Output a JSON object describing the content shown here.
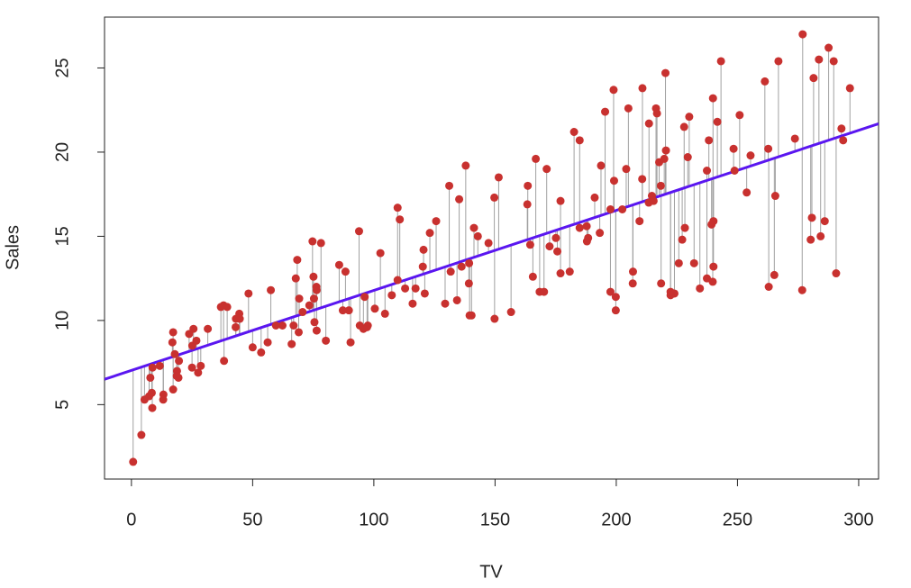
{
  "chart_data": {
    "type": "scatter",
    "x_label": "TV",
    "y_label": "Sales",
    "x": [
      230.1,
      44.5,
      17.2,
      151.5,
      180.8,
      8.7,
      57.5,
      120.2,
      8.6,
      199.8,
      66.1,
      214.7,
      23.8,
      97.5,
      204.1,
      195.4,
      67.8,
      281.4,
      69.2,
      147.3,
      218.4,
      237.4,
      13.2,
      228.3,
      62.3,
      262.9,
      142.9,
      240.1,
      248.8,
      70.6,
      292.9,
      112.9,
      97.2,
      265.6,
      95.7,
      290.7,
      266.9,
      74.7,
      43.1,
      228,
      202.5,
      177,
      293.6,
      206.9,
      25.1,
      175.1,
      89.7,
      239.9,
      227.2,
      66.9,
      199.8,
      100.4,
      216.4,
      182.6,
      262.7,
      198.9,
      7.3,
      136.2,
      210.8,
      210.7,
      53.5,
      261.3,
      239.3,
      102.7,
      131.1,
      69,
      31.5,
      139.3,
      237.4,
      216.8,
      199.1,
      109.8,
      26.8,
      129.4,
      213.4,
      16.9,
      27.5,
      120.5,
      5.4,
      116,
      76.4,
      239.8,
      75.3,
      68.4,
      213.5,
      193.2,
      76.3,
      110.7,
      88.3,
      109.8,
      134.3,
      28.6,
      217.7,
      250.9,
      107.4,
      163.3,
      197.6,
      184.9,
      289.7,
      135.2,
      222.4,
      296.4,
      280.2,
      187.9,
      238.2,
      137.9,
      25,
      90.4,
      13.1,
      255.4,
      225.8,
      241.7,
      175.7,
      209.6,
      78.2,
      75.1,
      139.2,
      76.4,
      125.7,
      19.4,
      141.3,
      18.8,
      224,
      123.1,
      229.5,
      87.2,
      7.8,
      80.2,
      220.3,
      59.6,
      0.7,
      265.2,
      8.4,
      219.8,
      36.9,
      48.3,
      25.6,
      273.7,
      43,
      184.9,
      73.4,
      193.7,
      220.5,
      104.6,
      96.2,
      140.3,
      240.1,
      243.2,
      38,
      44.7,
      280.7,
      121,
      197.6,
      171.3,
      187.8,
      4.1,
      93.9,
      149.8,
      11.7,
      131.7,
      172.5,
      85.7,
      188.4,
      163.5,
      117.2,
      234.5,
      17.9,
      206.8,
      215.4,
      284.3,
      50,
      164.5,
      19.6,
      168.4,
      222.4,
      276.9,
      248.4,
      170.2,
      276.7,
      165.6,
      156.6,
      218.5,
      56.2,
      287.6,
      253.8,
      205,
      139.5,
      191.1,
      286,
      18.7,
      39.5,
      75.5,
      17.2,
      166.8,
      149.7,
      38.2,
      94.2,
      177,
      283.6,
      232.1
    ],
    "y": [
      22.1,
      10.4,
      9.3,
      18.5,
      12.9,
      7.2,
      11.8,
      13.2,
      4.8,
      10.6,
      8.6,
      17.4,
      9.2,
      9.7,
      19,
      22.4,
      12.5,
      24.4,
      11.3,
      14.6,
      18,
      12.5,
      5.6,
      15.5,
      9.7,
      12,
      15,
      15.9,
      18.9,
      10.5,
      21.4,
      11.9,
      9.6,
      17.4,
      9.5,
      12.8,
      25.4,
      14.7,
      10.1,
      21.5,
      16.6,
      17.1,
      20.7,
      12.9,
      8.5,
      14.9,
      10.6,
      23.2,
      14.8,
      9.7,
      11.4,
      10.7,
      22.6,
      21.2,
      20.2,
      23.7,
      5.5,
      13.2,
      23.8,
      18.4,
      8.1,
      24.2,
      15.7,
      14,
      18,
      9.3,
      9.5,
      13.4,
      18.9,
      22.3,
      18.3,
      12.4,
      8.8,
      11,
      17,
      8.7,
      6.9,
      14.2,
      5.3,
      11,
      11.8,
      12.3,
      11.3,
      13.6,
      21.7,
      15.2,
      12,
      16,
      12.9,
      16.7,
      11.2,
      7.3,
      19.4,
      22.2,
      11.5,
      16.9,
      11.7,
      15.5,
      25.4,
      17.2,
      11.7,
      23.8,
      14.8,
      14.7,
      20.7,
      19.2,
      7.2,
      8.7,
      5.3,
      19.8,
      13.4,
      21.8,
      14.1,
      15.9,
      14.6,
      12.6,
      12.2,
      9.4,
      15.9,
      6.6,
      15.5,
      7,
      11.6,
      15.2,
      19.7,
      10.6,
      6.6,
      8.8,
      24.7,
      9.7,
      1.6,
      12.7,
      5.7,
      19.6,
      10.8,
      11.6,
      9.5,
      20.8,
      9.6,
      20.7,
      10.9,
      19.2,
      20.1,
      10.4,
      11.4,
      10.3,
      13.2,
      25.4,
      10.9,
      10.1,
      16.1,
      11.6,
      16.6,
      19,
      15.6,
      3.2,
      15.3,
      10.1,
      7.3,
      12.9,
      14.4,
      13.3,
      14.9,
      18,
      11.9,
      11.9,
      8,
      12.2,
      17.1,
      15,
      8.4,
      14.5,
      7.6,
      11.7,
      11.5,
      27,
      20.2,
      11.7,
      11.8,
      12.6,
      10.5,
      12.2,
      8.7,
      26.2,
      17.6,
      22.6,
      10.3,
      17.3,
      15.9,
      6.7,
      10.8,
      9.9,
      5.9,
      19.6,
      17.3,
      7.6,
      9.7,
      12.8,
      25.5,
      13.4
    ],
    "color": "#c8312f",
    "fit": {
      "intercept": 7.0326,
      "slope": 0.04754,
      "color": "#5a16f0"
    },
    "residual_color": "#a0a0a0",
    "xlim": [
      -11.1,
      308.2
    ],
    "ylim": [
      0.58,
      28.02
    ],
    "xticks": [
      0,
      50,
      100,
      150,
      200,
      250,
      300
    ],
    "yticks": [
      5,
      10,
      15,
      20,
      25
    ]
  }
}
